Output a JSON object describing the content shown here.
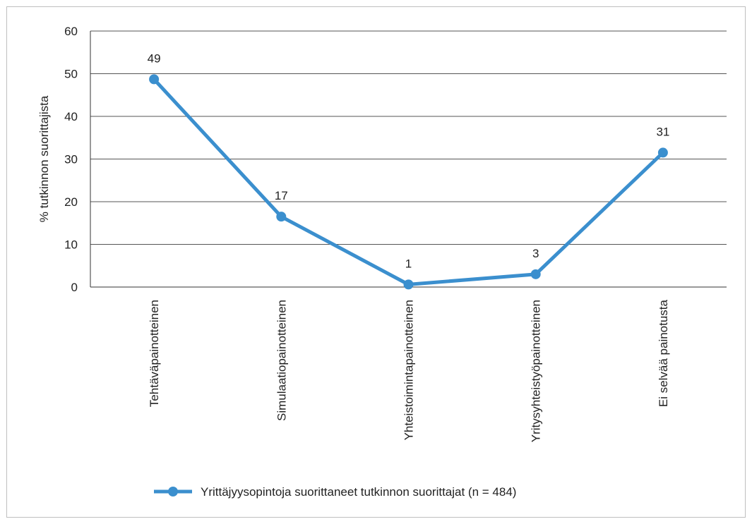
{
  "chart_data": {
    "type": "line",
    "title": "",
    "xlabel": "",
    "ylabel": "% tutkinnon suorittajista",
    "ylim": [
      0,
      60
    ],
    "yticks": [
      0,
      10,
      20,
      30,
      40,
      50,
      60
    ],
    "categories": [
      "Tehtäväpainotteinen",
      "Simulaatiopainotteinen",
      "Yhteistoimintapainotteinen",
      "Yritysyhteistyöpainotteinen",
      "Ei selvää painotusta"
    ],
    "series": [
      {
        "name": "Yrittäjyysopintoja suorittaneet tutkinnon suorittajat (n = 484)",
        "values": [
          48.7,
          16.5,
          0.6,
          3.0,
          31.5
        ],
        "labels": [
          "49",
          "17",
          "1",
          "3",
          "31"
        ],
        "color": "#3b8fce"
      }
    ],
    "grid": true,
    "legend_position": "bottom"
  }
}
